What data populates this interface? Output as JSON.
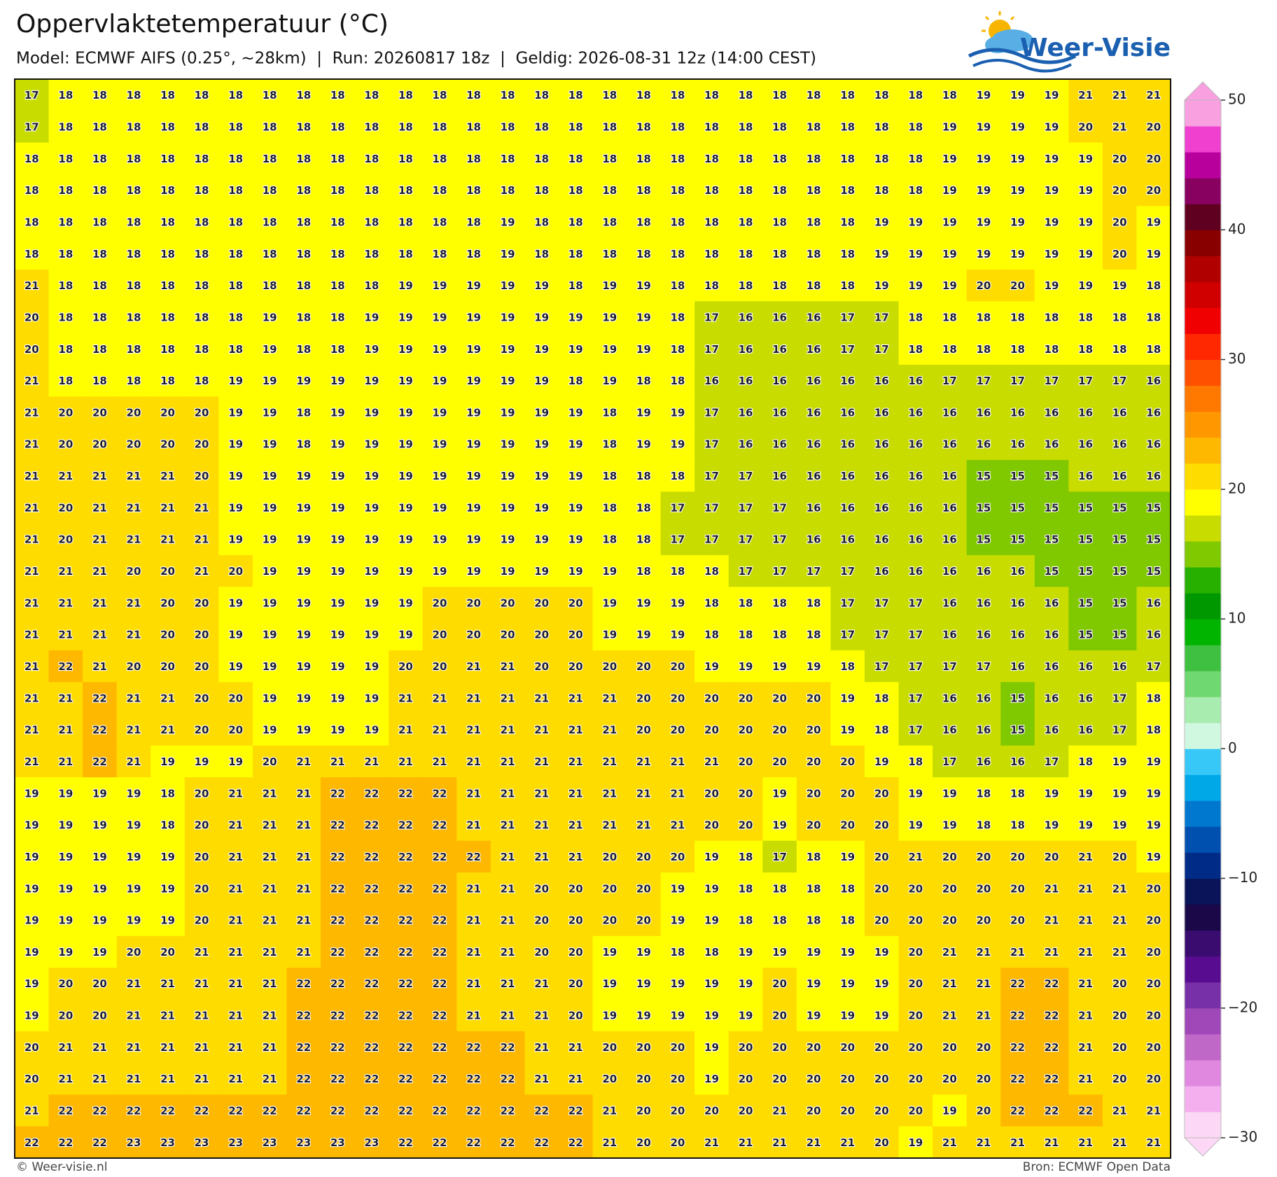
{
  "header": {
    "title": "Oppervlaktetemperatuur (°C)",
    "subtitle": "Model: ECMWF AIFS (0.25°, ~28km)  |  Run: 20260817 18z  |  Geldig: 2026-08-31 12z (14:00 CEST)",
    "logo": "Weer-Visie"
  },
  "map": {
    "grid": [
      [
        17,
        18,
        18,
        18,
        18,
        18,
        18,
        18,
        18,
        18,
        18,
        18,
        18,
        18,
        18,
        18,
        18,
        18,
        18,
        18,
        18,
        18,
        18,
        18,
        18,
        18,
        18,
        18,
        19,
        19,
        19,
        21,
        21,
        21
      ],
      [
        17,
        18,
        18,
        18,
        18,
        18,
        18,
        18,
        18,
        18,
        18,
        18,
        18,
        18,
        18,
        18,
        18,
        18,
        18,
        18,
        18,
        18,
        18,
        18,
        18,
        18,
        18,
        19,
        19,
        19,
        19,
        20,
        21,
        20
      ],
      [
        18,
        18,
        18,
        18,
        18,
        18,
        18,
        18,
        18,
        18,
        18,
        18,
        18,
        18,
        18,
        18,
        18,
        18,
        18,
        18,
        18,
        18,
        18,
        18,
        18,
        18,
        18,
        19,
        19,
        19,
        19,
        19,
        20,
        20
      ],
      [
        18,
        18,
        18,
        18,
        18,
        18,
        18,
        18,
        18,
        18,
        18,
        18,
        18,
        18,
        18,
        18,
        18,
        18,
        18,
        18,
        18,
        18,
        18,
        18,
        18,
        18,
        18,
        19,
        19,
        19,
        19,
        19,
        20,
        20
      ],
      [
        18,
        18,
        18,
        18,
        18,
        18,
        18,
        18,
        18,
        18,
        18,
        18,
        18,
        18,
        19,
        18,
        18,
        18,
        18,
        18,
        18,
        18,
        18,
        18,
        18,
        19,
        19,
        19,
        19,
        19,
        19,
        19,
        20,
        19
      ],
      [
        18,
        18,
        18,
        18,
        18,
        18,
        18,
        18,
        18,
        18,
        18,
        18,
        18,
        18,
        19,
        18,
        18,
        18,
        18,
        18,
        18,
        18,
        18,
        18,
        18,
        19,
        19,
        19,
        19,
        19,
        19,
        19,
        20,
        19
      ],
      [
        21,
        18,
        18,
        18,
        18,
        18,
        18,
        18,
        18,
        18,
        18,
        19,
        19,
        19,
        19,
        19,
        18,
        19,
        19,
        18,
        18,
        18,
        18,
        18,
        18,
        19,
        19,
        19,
        20,
        20,
        19,
        19,
        19,
        18
      ],
      [
        20,
        18,
        18,
        18,
        18,
        18,
        18,
        19,
        18,
        18,
        19,
        19,
        19,
        19,
        19,
        19,
        19,
        19,
        19,
        18,
        17,
        16,
        16,
        16,
        17,
        17,
        18,
        18,
        18,
        18,
        18,
        18,
        18,
        18
      ],
      [
        20,
        18,
        18,
        18,
        18,
        18,
        18,
        19,
        18,
        18,
        19,
        19,
        19,
        19,
        19,
        19,
        19,
        19,
        19,
        18,
        17,
        16,
        16,
        16,
        17,
        17,
        18,
        18,
        18,
        18,
        18,
        18,
        18,
        18
      ],
      [
        21,
        18,
        18,
        18,
        18,
        18,
        19,
        19,
        19,
        19,
        19,
        19,
        19,
        19,
        19,
        19,
        18,
        19,
        18,
        18,
        16,
        16,
        16,
        16,
        16,
        16,
        16,
        17,
        17,
        17,
        17,
        17,
        17,
        16
      ],
      [
        21,
        20,
        20,
        20,
        20,
        20,
        19,
        19,
        18,
        19,
        19,
        19,
        19,
        19,
        19,
        19,
        19,
        18,
        19,
        19,
        17,
        16,
        16,
        16,
        16,
        16,
        16,
        16,
        16,
        16,
        16,
        16,
        16,
        16
      ],
      [
        21,
        20,
        20,
        20,
        20,
        20,
        19,
        19,
        18,
        19,
        19,
        19,
        19,
        19,
        19,
        19,
        19,
        18,
        19,
        19,
        17,
        16,
        16,
        16,
        16,
        16,
        16,
        16,
        16,
        16,
        16,
        16,
        16,
        16
      ],
      [
        21,
        21,
        21,
        21,
        21,
        20,
        19,
        19,
        19,
        19,
        19,
        19,
        19,
        19,
        19,
        19,
        19,
        18,
        18,
        18,
        17,
        17,
        16,
        16,
        16,
        16,
        16,
        16,
        15,
        15,
        15,
        16,
        16,
        16
      ],
      [
        21,
        20,
        21,
        21,
        21,
        21,
        19,
        19,
        19,
        19,
        19,
        19,
        19,
        19,
        19,
        19,
        19,
        18,
        18,
        17,
        17,
        17,
        17,
        16,
        16,
        16,
        16,
        16,
        15,
        15,
        15,
        15,
        15,
        15
      ],
      [
        21,
        20,
        21,
        21,
        21,
        21,
        19,
        19,
        19,
        19,
        19,
        19,
        19,
        19,
        19,
        19,
        19,
        18,
        18,
        17,
        17,
        17,
        17,
        16,
        16,
        16,
        16,
        16,
        15,
        15,
        15,
        15,
        15,
        15
      ],
      [
        21,
        21,
        21,
        20,
        20,
        21,
        20,
        19,
        19,
        19,
        19,
        19,
        19,
        19,
        19,
        19,
        19,
        19,
        18,
        18,
        18,
        17,
        17,
        17,
        17,
        16,
        16,
        16,
        16,
        16,
        15,
        15,
        15,
        15
      ],
      [
        21,
        21,
        21,
        21,
        20,
        20,
        19,
        19,
        19,
        19,
        19,
        19,
        20,
        20,
        20,
        20,
        20,
        19,
        19,
        19,
        18,
        18,
        18,
        18,
        17,
        17,
        17,
        16,
        16,
        16,
        16,
        15,
        15,
        16
      ],
      [
        21,
        21,
        21,
        21,
        20,
        20,
        19,
        19,
        19,
        19,
        19,
        19,
        20,
        20,
        20,
        20,
        20,
        19,
        19,
        19,
        18,
        18,
        18,
        18,
        17,
        17,
        17,
        16,
        16,
        16,
        16,
        15,
        15,
        16
      ],
      [
        21,
        22,
        21,
        20,
        20,
        20,
        19,
        19,
        19,
        19,
        19,
        20,
        20,
        21,
        21,
        20,
        20,
        20,
        20,
        20,
        19,
        19,
        19,
        19,
        18,
        17,
        17,
        17,
        17,
        16,
        16,
        16,
        16,
        17
      ],
      [
        21,
        21,
        22,
        21,
        21,
        20,
        20,
        19,
        19,
        19,
        19,
        21,
        21,
        21,
        21,
        21,
        21,
        21,
        20,
        20,
        20,
        20,
        20,
        20,
        19,
        18,
        17,
        16,
        16,
        15,
        16,
        16,
        17,
        18
      ],
      [
        21,
        21,
        22,
        21,
        21,
        20,
        20,
        19,
        19,
        19,
        19,
        21,
        21,
        21,
        21,
        21,
        21,
        21,
        20,
        20,
        20,
        20,
        20,
        20,
        19,
        18,
        17,
        16,
        16,
        15,
        16,
        16,
        17,
        18
      ],
      [
        21,
        21,
        22,
        21,
        19,
        19,
        19,
        20,
        21,
        21,
        21,
        21,
        21,
        21,
        21,
        21,
        21,
        21,
        21,
        21,
        21,
        20,
        20,
        20,
        20,
        19,
        18,
        17,
        16,
        16,
        17,
        18,
        19,
        19
      ],
      [
        19,
        19,
        19,
        19,
        18,
        20,
        21,
        21,
        21,
        22,
        22,
        22,
        22,
        21,
        21,
        21,
        21,
        21,
        21,
        21,
        20,
        20,
        19,
        20,
        20,
        20,
        19,
        19,
        18,
        18,
        19,
        19,
        19,
        19
      ],
      [
        19,
        19,
        19,
        19,
        18,
        20,
        21,
        21,
        21,
        22,
        22,
        22,
        22,
        21,
        21,
        21,
        21,
        21,
        21,
        21,
        20,
        20,
        19,
        20,
        20,
        20,
        19,
        19,
        18,
        18,
        19,
        19,
        19,
        19
      ],
      [
        19,
        19,
        19,
        19,
        19,
        20,
        21,
        21,
        21,
        22,
        22,
        22,
        22,
        22,
        21,
        21,
        21,
        20,
        20,
        20,
        19,
        18,
        17,
        18,
        19,
        20,
        21,
        20,
        20,
        20,
        20,
        21,
        20,
        19
      ],
      [
        19,
        19,
        19,
        19,
        19,
        20,
        21,
        21,
        21,
        22,
        22,
        22,
        22,
        21,
        21,
        20,
        20,
        20,
        20,
        19,
        19,
        18,
        18,
        18,
        18,
        20,
        20,
        20,
        20,
        20,
        21,
        21,
        21,
        20
      ],
      [
        19,
        19,
        19,
        19,
        19,
        20,
        21,
        21,
        21,
        22,
        22,
        22,
        22,
        21,
        21,
        20,
        20,
        20,
        20,
        19,
        19,
        18,
        18,
        18,
        18,
        20,
        20,
        20,
        20,
        20,
        21,
        21,
        21,
        20
      ],
      [
        19,
        19,
        19,
        20,
        20,
        21,
        21,
        21,
        21,
        22,
        22,
        22,
        22,
        21,
        21,
        20,
        20,
        19,
        19,
        18,
        18,
        19,
        19,
        19,
        19,
        19,
        20,
        21,
        21,
        21,
        21,
        21,
        21,
        20
      ],
      [
        19,
        20,
        20,
        21,
        21,
        21,
        21,
        21,
        22,
        22,
        22,
        22,
        22,
        21,
        21,
        21,
        20,
        19,
        19,
        19,
        19,
        19,
        20,
        19,
        19,
        19,
        20,
        21,
        21,
        22,
        22,
        21,
        20,
        20
      ],
      [
        19,
        20,
        20,
        21,
        21,
        21,
        21,
        21,
        22,
        22,
        22,
        22,
        22,
        21,
        21,
        21,
        20,
        19,
        19,
        19,
        19,
        19,
        20,
        19,
        19,
        19,
        20,
        21,
        21,
        22,
        22,
        21,
        20,
        20
      ],
      [
        20,
        21,
        21,
        21,
        21,
        21,
        21,
        21,
        22,
        22,
        22,
        22,
        22,
        22,
        22,
        21,
        21,
        20,
        20,
        20,
        19,
        20,
        20,
        20,
        20,
        20,
        20,
        20,
        20,
        22,
        22,
        21,
        20,
        20
      ],
      [
        20,
        21,
        21,
        21,
        21,
        21,
        21,
        21,
        22,
        22,
        22,
        22,
        22,
        22,
        22,
        21,
        21,
        20,
        20,
        20,
        19,
        20,
        20,
        20,
        20,
        20,
        20,
        20,
        20,
        22,
        22,
        21,
        20,
        20
      ],
      [
        21,
        22,
        22,
        22,
        22,
        22,
        22,
        22,
        22,
        22,
        22,
        22,
        22,
        22,
        22,
        22,
        22,
        21,
        20,
        20,
        20,
        20,
        21,
        20,
        20,
        20,
        20,
        19,
        20,
        22,
        22,
        22,
        21,
        21
      ],
      [
        22,
        22,
        22,
        23,
        23,
        23,
        23,
        23,
        23,
        23,
        23,
        22,
        22,
        22,
        22,
        22,
        22,
        21,
        20,
        20,
        21,
        21,
        21,
        21,
        21,
        20,
        19,
        21,
        21,
        21,
        21,
        21,
        21,
        21
      ]
    ]
  },
  "colorbar": {
    "range": [
      -30,
      50
    ],
    "colors": [
      "#fcd8f6",
      "#f4b0ee",
      "#e088e0",
      "#c068c8",
      "#a048b8",
      "#7830a8",
      "#580c90",
      "#3a0c70",
      "#1a0848",
      "#0a1458",
      "#002c88",
      "#0050b0",
      "#0078d0",
      "#00a8e8",
      "#38c8f8",
      "#d0f8e0",
      "#a8ecb0",
      "#70d870",
      "#40c040",
      "#00b400",
      "#009800",
      "#28b000",
      "#80c800",
      "#c8dc00",
      "#ffff00",
      "#ffdc00",
      "#ffb800",
      "#ff9800",
      "#ff7800",
      "#ff5000",
      "#ff2800",
      "#f00000",
      "#d00000",
      "#b00000",
      "#880000",
      "#600020",
      "#880060",
      "#b8009c",
      "#f040d0",
      "#f8a0e0"
    ],
    "ticks": [
      50,
      40,
      30,
      20,
      10,
      0,
      {
        "value": -10,
        "label": "−10"
      },
      {
        "value": -20,
        "label": "−20"
      },
      {
        "value": -30,
        "label": "−30"
      }
    ]
  },
  "footer": {
    "credit": "© Weer-visie.nl",
    "source": "Bron: ECMWF Open Data"
  }
}
